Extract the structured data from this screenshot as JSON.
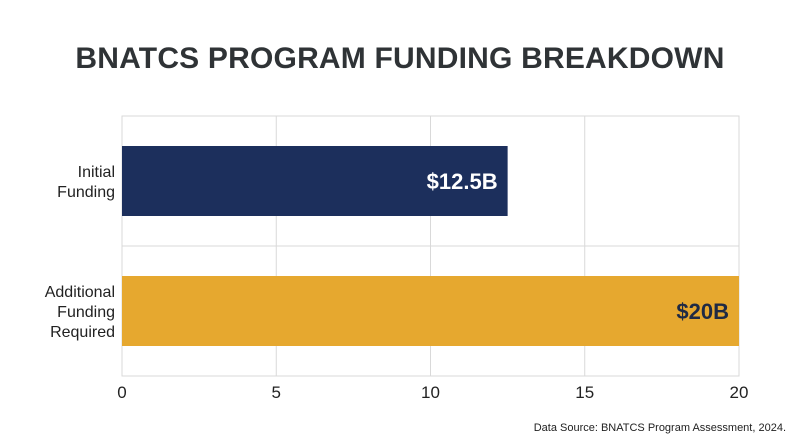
{
  "chart_data": {
    "type": "bar",
    "orientation": "horizontal",
    "title": "BNATCS PROGRAM FUNDING BREAKDOWN",
    "categories": [
      [
        "Initial",
        "Funding"
      ],
      [
        "Additional",
        "Funding",
        "Required"
      ]
    ],
    "values": [
      12.5,
      20
    ],
    "data_labels": [
      "$12.5B",
      "$20B"
    ],
    "data_label_colors": [
      "#ffffff",
      "#1f2a44"
    ],
    "bar_colors": [
      "#1c2f5c",
      "#e6a82f"
    ],
    "xlim": [
      0,
      20
    ],
    "x_ticks": [
      0,
      5,
      10,
      15,
      20
    ],
    "xlabel": "",
    "ylabel": "",
    "grid": true
  },
  "source": "Data Source: BNATCS Program Assessment, 2024."
}
